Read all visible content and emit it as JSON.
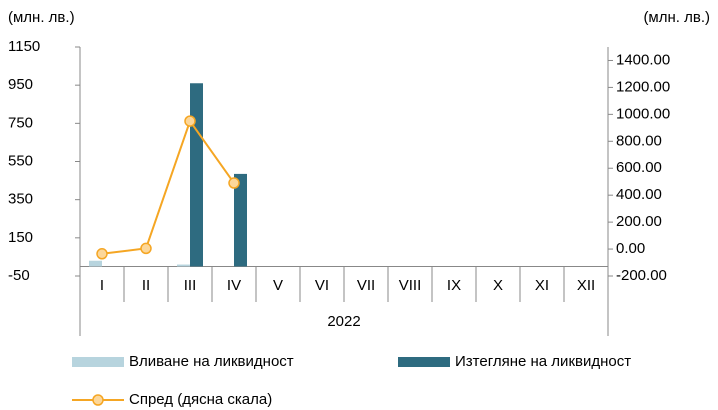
{
  "chart_data": {
    "type": "bar-line",
    "y_label": "(млн. лв.)",
    "y2_label": "(млн. лв.)",
    "categories": [
      "I",
      "II",
      "III",
      "IV",
      "V",
      "VI",
      "VII",
      "VIII",
      "IX",
      "X",
      "XI",
      "XII"
    ],
    "group_label": "2022",
    "series": [
      {
        "name": "Вливане на ликвидност",
        "type": "bar",
        "color": "#b7d4de",
        "values": [
          30,
          null,
          10,
          null,
          null,
          null,
          null,
          null,
          null,
          null,
          null,
          null
        ]
      },
      {
        "name": "Изтегляне на ликвидност",
        "type": "bar",
        "color": "#2e6b80",
        "values": [
          null,
          null,
          960,
          485,
          null,
          null,
          null,
          null,
          null,
          null,
          null,
          null
        ]
      },
      {
        "name": "Спред (дясна скала)",
        "type": "line",
        "axis": "y2",
        "color": "#f5a623",
        "marker_fill": "#fcd79a",
        "values": [
          -35,
          5,
          950,
          490,
          null,
          null,
          null,
          null,
          null,
          null,
          null,
          null
        ]
      }
    ],
    "ylim": [
      -50,
      1150
    ],
    "yticks": [
      -50,
      150,
      350,
      550,
      750,
      950,
      1150
    ],
    "y2lim": [
      -200,
      1500
    ],
    "y2ticks": [
      {
        "value": -200,
        "label": "-200.00"
      },
      {
        "value": 0,
        "label": "0.00"
      },
      {
        "value": 200,
        "label": "200.00"
      },
      {
        "value": 400,
        "label": "400.00"
      },
      {
        "value": 600,
        "label": "600.00"
      },
      {
        "value": 800,
        "label": "800.00"
      },
      {
        "value": 1000,
        "label": "1000.00"
      },
      {
        "value": 1200,
        "label": "1200.00"
      },
      {
        "value": 1400,
        "label": "1400.00"
      }
    ]
  }
}
